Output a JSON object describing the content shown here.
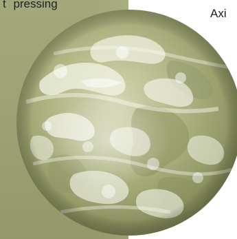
{
  "slide": {
    "left_text": "t pressing",
    "right_text": "Axi",
    "colors": {
      "panel": "#9ea375",
      "globe_tint": "#b8bd8e",
      "globe_shadow": "#7d8254",
      "cloud": "#f3f4e6"
    },
    "image": {
      "icon": "earth-globe-icon"
    }
  }
}
